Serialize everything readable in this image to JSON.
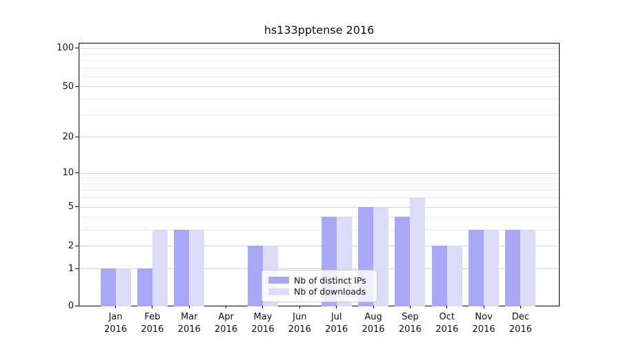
{
  "title": "hs133pptense 2016",
  "chart_data": {
    "type": "bar",
    "title": "hs133pptense 2016",
    "year": "2016",
    "months": [
      "Jan",
      "Feb",
      "Mar",
      "Apr",
      "May",
      "Jun",
      "Jul",
      "Aug",
      "Sep",
      "Oct",
      "Nov",
      "Dec"
    ],
    "categories": [
      "Jan 2016",
      "Feb 2016",
      "Mar 2016",
      "Apr 2016",
      "May 2016",
      "Jun 2016",
      "Jul 2016",
      "Aug 2016",
      "Sep 2016",
      "Oct 2016",
      "Nov 2016",
      "Dec 2016"
    ],
    "series": [
      {
        "name": "Nb of distinct IPs",
        "color": "#a8a8f6",
        "values": [
          1,
          1,
          3,
          0,
          2,
          0,
          4,
          5,
          4,
          2,
          3,
          3
        ]
      },
      {
        "name": "Nb of downloads",
        "color": "#dcdcf9",
        "values": [
          1,
          3,
          3,
          0,
          2,
          0,
          4,
          5,
          6,
          2,
          3,
          3
        ]
      }
    ],
    "xlabel": "",
    "ylabel": "",
    "yscale": "symlog",
    "ylim": [
      0,
      110
    ],
    "y_major_ticks": [
      0,
      1,
      2,
      5,
      10,
      20,
      50,
      100
    ],
    "y_minor_ticks": [
      3,
      4,
      6,
      7,
      8,
      9,
      30,
      40,
      60,
      70,
      80,
      90
    ],
    "grid": "both",
    "legend_position": "lower center",
    "colors": {
      "grid_major": "#d7d7d7",
      "grid_minor": "#ececec",
      "axis": "#000000",
      "legend_border": "#cccccc"
    }
  }
}
